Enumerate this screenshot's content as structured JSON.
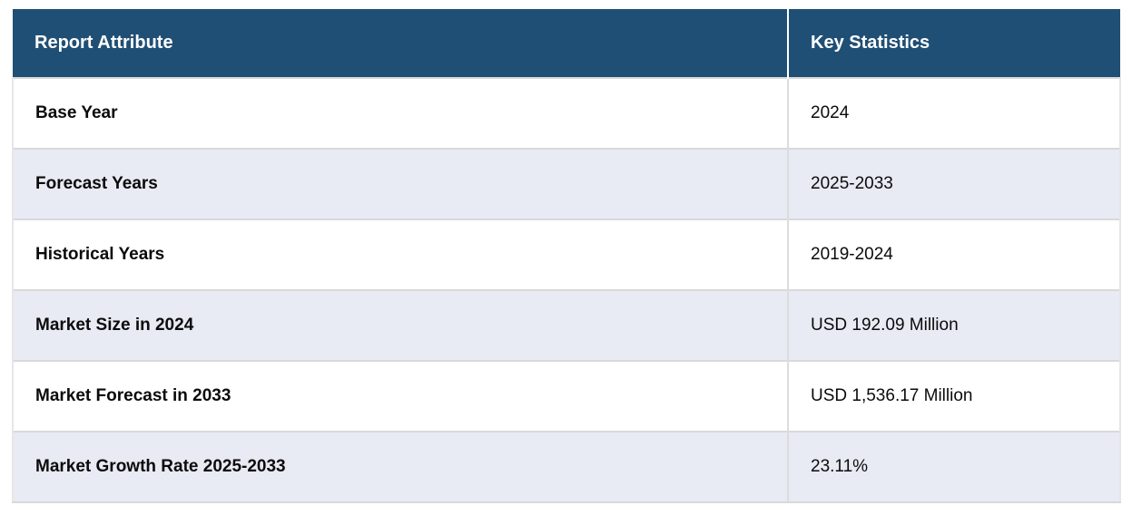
{
  "chart_data": {
    "type": "table",
    "columns": [
      "Report Attribute",
      "Key Statistics"
    ],
    "rows": [
      [
        "Base Year",
        "2024"
      ],
      [
        "Forecast Years",
        "2025-2033"
      ],
      [
        "Historical Years",
        "2019-2024"
      ],
      [
        "Market Size in 2024",
        "USD 192.09 Million"
      ],
      [
        "Market Forecast in 2033",
        "USD 1,536.17 Million"
      ],
      [
        "Market Growth Rate 2025-2033",
        "23.11%"
      ]
    ]
  },
  "colors": {
    "header_bg": "#204F75",
    "header_text": "#FFFFFF",
    "row_bg": "#FFFFFF",
    "row_alt_bg": "#E8EAF4",
    "border": "#D9D9D9",
    "text": "#0B0B0B"
  }
}
